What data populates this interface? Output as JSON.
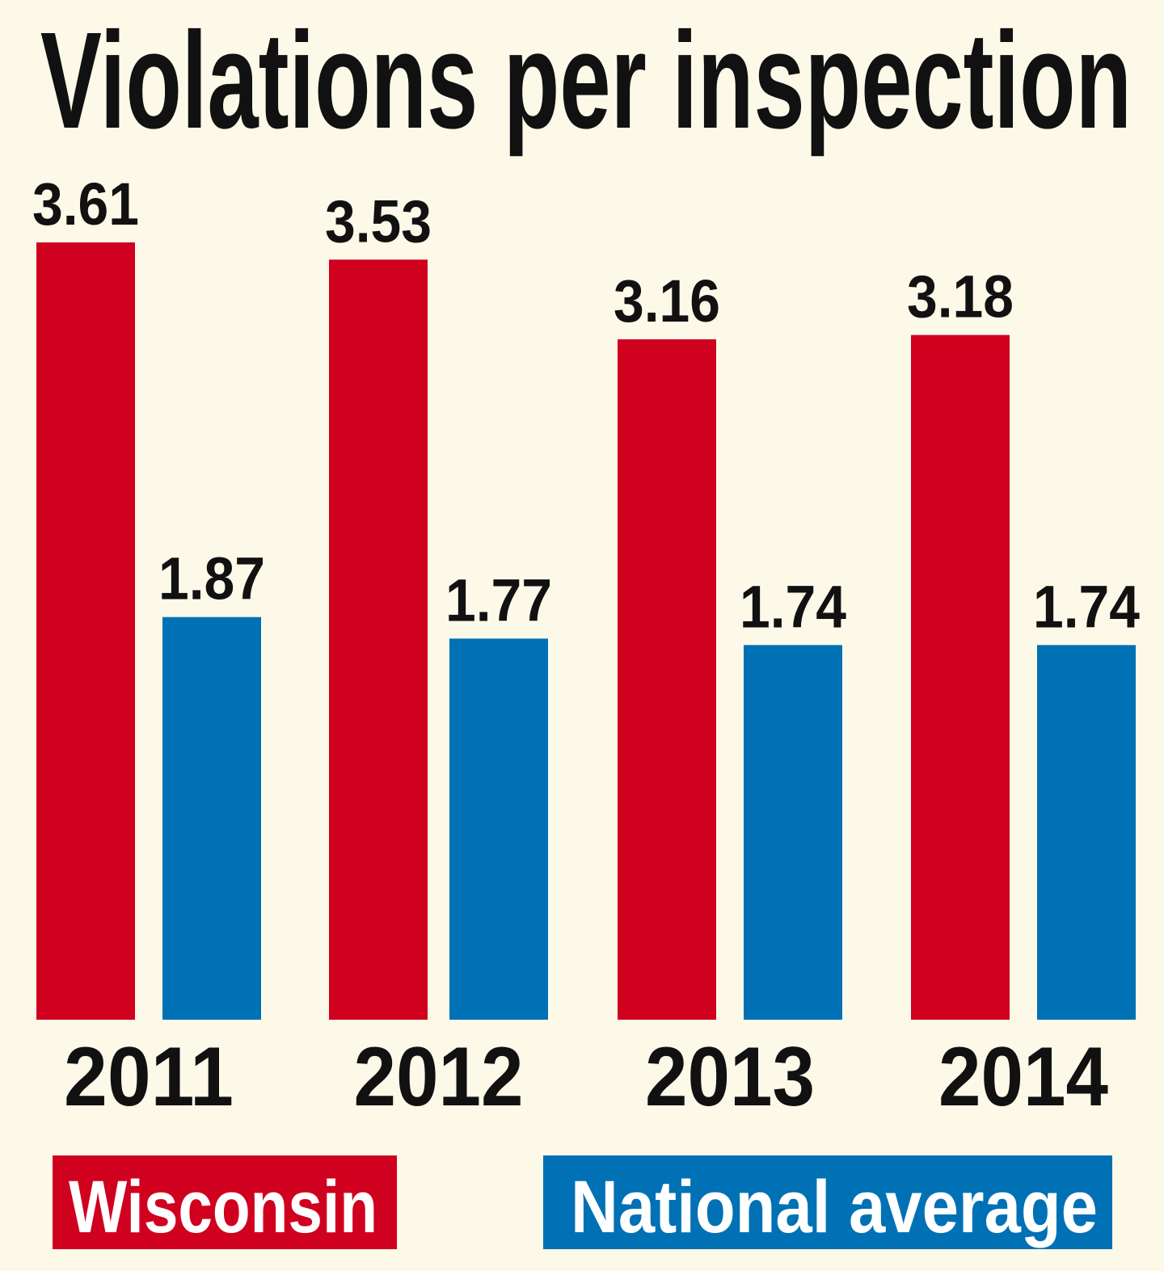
{
  "chart_data": {
    "type": "bar",
    "title": "Violations per inspection",
    "categories": [
      "2011",
      "2012",
      "2013",
      "2014"
    ],
    "series": [
      {
        "name": "Wisconsin",
        "color": "#d0001f",
        "values": [
          3.61,
          3.53,
          3.16,
          3.18
        ],
        "labels": [
          "3.61",
          "3.53",
          "3.16",
          "3.18"
        ]
      },
      {
        "name": "National average",
        "color": "#0071b5",
        "values": [
          1.87,
          1.77,
          1.74,
          1.74
        ],
        "labels": [
          "1.87",
          "1.77",
          "1.74",
          "1.74"
        ]
      }
    ],
    "xlabel": "",
    "ylabel": "",
    "ylim": [
      0,
      3.61
    ],
    "grid": false,
    "legend": "bottom",
    "background": "#fdf9e9"
  }
}
